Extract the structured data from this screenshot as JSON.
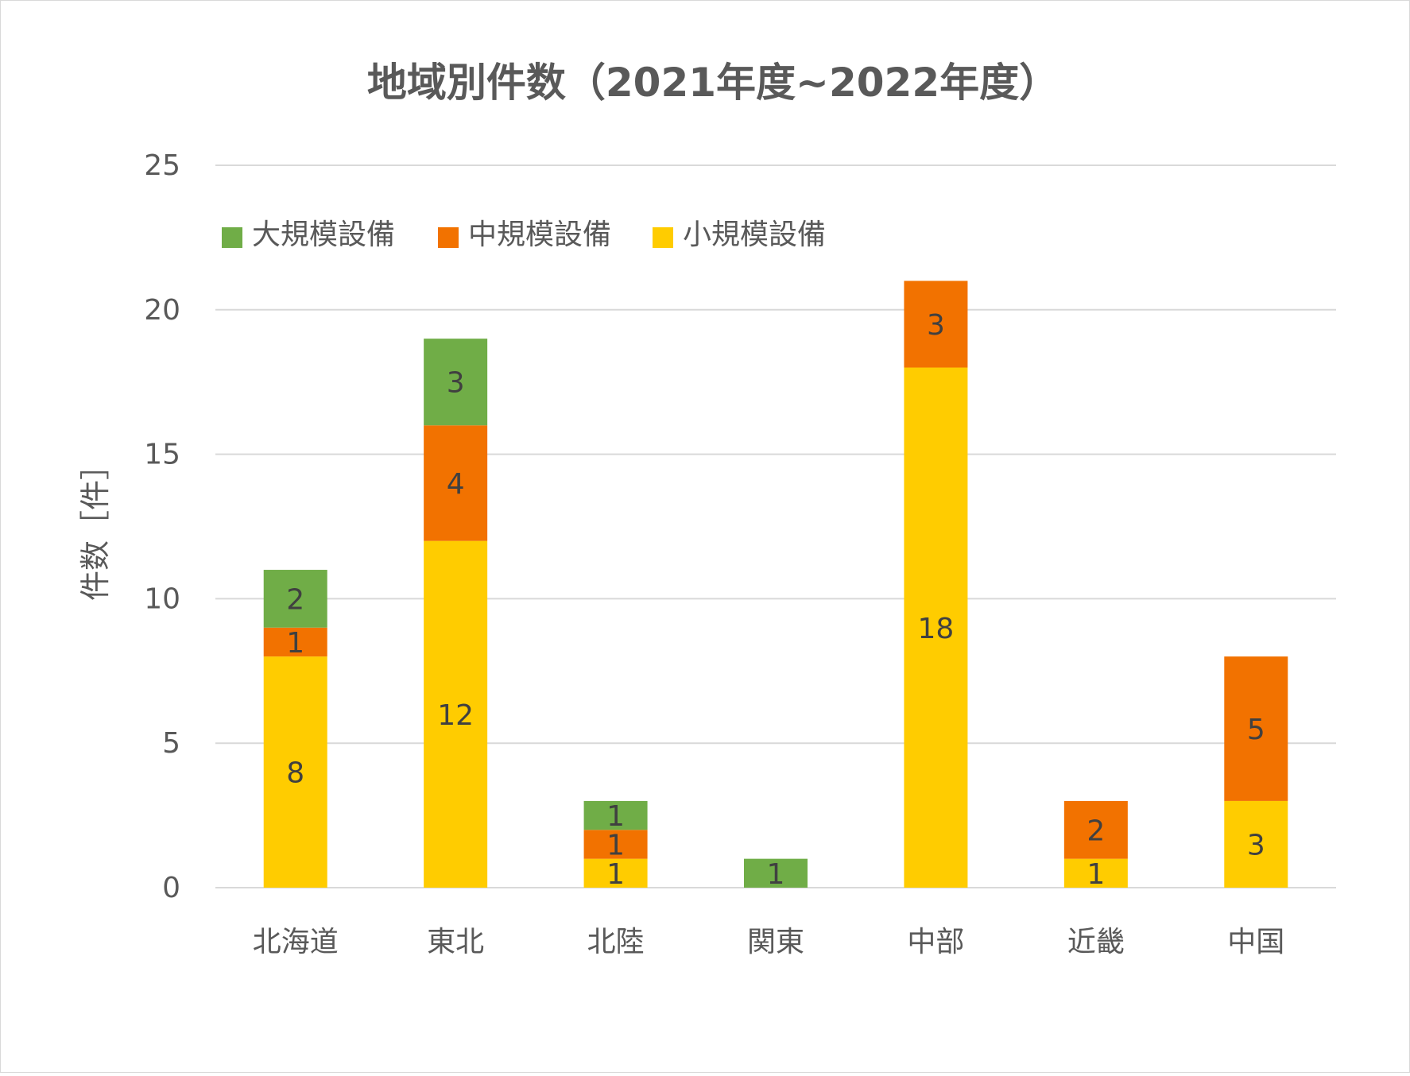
{
  "chart_data": {
    "type": "bar",
    "stacked": true,
    "title": "地域別件数（2021年度~2022年度）",
    "ylabel": "件数［件］",
    "xlabel": "",
    "ylim": [
      0,
      25
    ],
    "yticks": [
      0,
      5,
      10,
      15,
      20,
      25
    ],
    "grid": true,
    "legend_position": "top-left",
    "categories": [
      "北海道",
      "東北",
      "北陸",
      "関東",
      "中部",
      "近畿",
      "中国"
    ],
    "series": [
      {
        "name": "小規模設備",
        "color": "#FFCC00",
        "values": [
          8,
          12,
          1,
          0,
          18,
          1,
          3
        ]
      },
      {
        "name": "中規模設備",
        "color": "#F27200",
        "values": [
          1,
          4,
          1,
          0,
          3,
          2,
          5
        ]
      },
      {
        "name": "大規模設備",
        "color": "#70AD47",
        "values": [
          2,
          3,
          1,
          1,
          0,
          0,
          0
        ]
      }
    ],
    "legend_order": [
      "大規模設備",
      "中規模設備",
      "小規模設備"
    ]
  }
}
